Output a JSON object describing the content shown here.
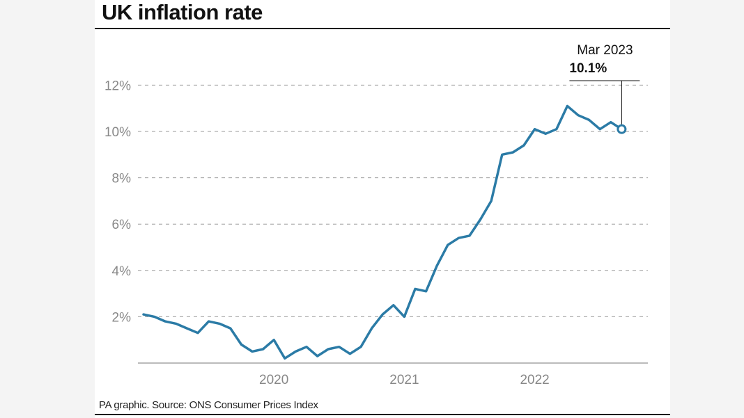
{
  "header": {
    "title": "UK inflation rate"
  },
  "footer": {
    "source": "PA graphic. Source: ONS Consumer Prices Index"
  },
  "chart_data": {
    "type": "line",
    "title": "UK inflation rate",
    "xlabel": "",
    "ylabel": "",
    "ylim": [
      0,
      12
    ],
    "yticks": [
      2,
      4,
      6,
      8,
      10,
      12
    ],
    "ytick_labels": [
      "2%",
      "4%",
      "6%",
      "8%",
      "10%",
      "12%"
    ],
    "xtick_labels": [
      "2020",
      "2021",
      "2022"
    ],
    "grid": "horizontal dashed",
    "line_color": "#2b7ba6",
    "series": [
      {
        "x": [
          "2019-07",
          "2019-08",
          "2019-09",
          "2019-10",
          "2019-11",
          "2019-12",
          "2020-01",
          "2020-02",
          "2020-03",
          "2020-04",
          "2020-05",
          "2020-06",
          "2020-07",
          "2020-08",
          "2020-09",
          "2020-10",
          "2020-11",
          "2020-12",
          "2021-01",
          "2021-02",
          "2021-03",
          "2021-04",
          "2021-05",
          "2021-06",
          "2021-07",
          "2021-08",
          "2021-09",
          "2021-10",
          "2021-11",
          "2021-12",
          "2022-01",
          "2022-02",
          "2022-03",
          "2022-04",
          "2022-05",
          "2022-06",
          "2022-07",
          "2022-08",
          "2022-09",
          "2022-10",
          "2022-11",
          "2022-12",
          "2023-01",
          "2023-02",
          "2023-03"
        ],
        "values": [
          2.1,
          2.0,
          1.8,
          1.7,
          1.5,
          1.3,
          1.8,
          1.7,
          1.5,
          0.8,
          0.5,
          0.6,
          1.0,
          0.2,
          0.5,
          0.7,
          0.3,
          0.6,
          0.7,
          0.4,
          0.7,
          1.5,
          2.1,
          2.5,
          2.0,
          3.2,
          3.1,
          4.2,
          5.1,
          5.4,
          5.5,
          6.2,
          7.0,
          9.0,
          9.1,
          9.4,
          10.1,
          9.9,
          10.1,
          11.1,
          10.7,
          10.5,
          10.1,
          10.4,
          10.1
        ]
      }
    ],
    "annotation": {
      "date": "Mar 2023",
      "value": "10.1%"
    }
  }
}
